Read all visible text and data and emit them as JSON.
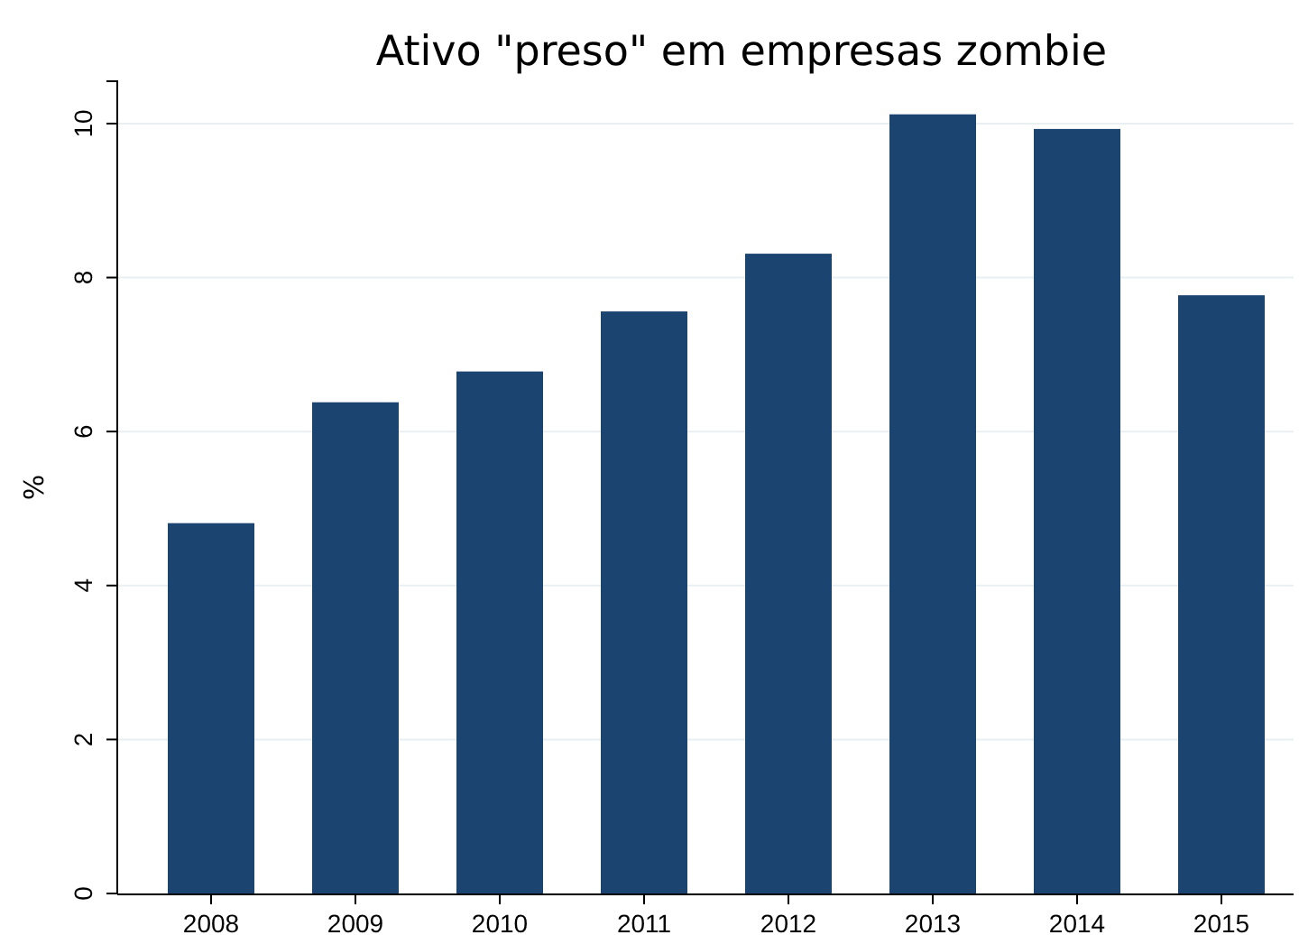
{
  "chart_data": {
    "type": "bar",
    "title": "Ativo \"preso\" em empresas zombie",
    "ylabel": "%",
    "categories": [
      "2008",
      "2009",
      "2010",
      "2011",
      "2012",
      "2013",
      "2014",
      "2015"
    ],
    "values": [
      4.81,
      6.38,
      6.78,
      7.56,
      8.31,
      10.12,
      9.93,
      7.77
    ],
    "color": "#1b4570",
    "ylim": [
      0,
      10.55
    ],
    "yticks": [
      0,
      2,
      4,
      6,
      8,
      10
    ],
    "grid": "y"
  }
}
